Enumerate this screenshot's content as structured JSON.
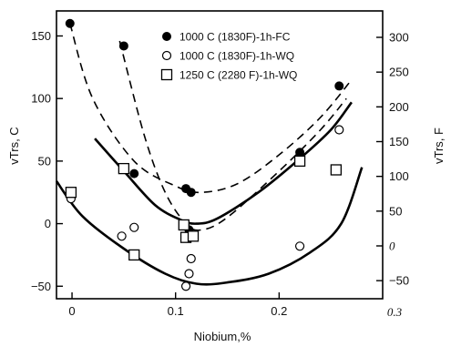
{
  "chart_data": {
    "type": "scatter",
    "xlabel": "Niobium,%",
    "ylabel_left": "vTrs, C",
    "ylabel_right": "vTrs, F",
    "xlim": [
      -0.015,
      0.3
    ],
    "ylim": [
      -60,
      170
    ],
    "x_ticks": [
      {
        "value": 0,
        "label": "0"
      },
      {
        "value": 0.1,
        "label": "0.1"
      },
      {
        "value": 0.2,
        "label": "0.2"
      },
      {
        "value": 0.3,
        "label": "0.3"
      }
    ],
    "y_ticks_left": [
      {
        "value": -50,
        "label": "−50"
      },
      {
        "value": 0,
        "label": "0"
      },
      {
        "value": 50,
        "label": "50"
      },
      {
        "value": 100,
        "label": "100"
      },
      {
        "value": 150,
        "label": "150"
      }
    ],
    "y_ticks_right": [
      {
        "value_f": -50,
        "label": "−50"
      },
      {
        "value_f": 0,
        "label": "0"
      },
      {
        "value_f": 50,
        "label": "50"
      },
      {
        "value_f": 100,
        "label": "100"
      },
      {
        "value_f": 150,
        "label": "150"
      },
      {
        "value_f": 200,
        "label": "200"
      },
      {
        "value_f": 250,
        "label": "250"
      },
      {
        "value_f": 300,
        "label": "300"
      }
    ],
    "legend_position": "top-right",
    "series": [
      {
        "name": "1000 C (1830F)-1h-FC",
        "marker": "filled-circle",
        "points": [
          [
            -0.002,
            160
          ],
          [
            0.05,
            142
          ],
          [
            0.06,
            40
          ],
          [
            0.11,
            28
          ],
          [
            0.115,
            25
          ],
          [
            0.113,
            -5
          ],
          [
            0.22,
            57
          ],
          [
            0.258,
            110
          ]
        ]
      },
      {
        "name": "1000 C (1830F)-1h-WQ",
        "marker": "open-circle",
        "points": [
          [
            -0.001,
            20
          ],
          [
            0.048,
            -10
          ],
          [
            0.06,
            -3
          ],
          [
            0.11,
            -50
          ],
          [
            0.113,
            -40
          ],
          [
            0.115,
            -28
          ],
          [
            0.22,
            -18
          ],
          [
            0.258,
            75
          ]
        ]
      },
      {
        "name": "1250 C (2280 F)-1h-WQ",
        "marker": "open-square",
        "points": [
          [
            -0.001,
            25
          ],
          [
            0.05,
            44
          ],
          [
            0.06,
            -25
          ],
          [
            0.108,
            -1
          ],
          [
            0.11,
            -11
          ],
          [
            0.117,
            -10
          ],
          [
            0.22,
            50
          ],
          [
            0.255,
            43
          ]
        ]
      }
    ],
    "curves": [
      {
        "style": "dashed",
        "points": [
          [
            -0.002,
            160
          ],
          [
            0.02,
            100
          ],
          [
            0.06,
            50
          ],
          [
            0.1,
            30
          ],
          [
            0.125,
            25
          ],
          [
            0.16,
            32
          ],
          [
            0.2,
            55
          ],
          [
            0.24,
            85
          ],
          [
            0.27,
            115
          ]
        ]
      },
      {
        "style": "dashed",
        "points": [
          [
            0.046,
            146
          ],
          [
            0.07,
            70
          ],
          [
            0.09,
            25
          ],
          [
            0.11,
            0
          ],
          [
            0.125,
            -5
          ],
          [
            0.15,
            5
          ],
          [
            0.2,
            42
          ],
          [
            0.24,
            75
          ],
          [
            0.265,
            100
          ]
        ]
      },
      {
        "style": "solid",
        "points": [
          [
            0.022,
            68
          ],
          [
            0.05,
            42
          ],
          [
            0.08,
            15
          ],
          [
            0.105,
            3
          ],
          [
            0.12,
            0
          ],
          [
            0.14,
            4
          ],
          [
            0.18,
            25
          ],
          [
            0.22,
            52
          ],
          [
            0.25,
            75
          ],
          [
            0.27,
            97
          ]
        ]
      },
      {
        "style": "solid",
        "points": [
          [
            -0.015,
            34
          ],
          [
            0.01,
            6
          ],
          [
            0.05,
            -20
          ],
          [
            0.09,
            -40
          ],
          [
            0.12,
            -48
          ],
          [
            0.15,
            -47
          ],
          [
            0.19,
            -40
          ],
          [
            0.23,
            -23
          ],
          [
            0.26,
            0
          ],
          [
            0.28,
            45
          ]
        ]
      }
    ]
  }
}
